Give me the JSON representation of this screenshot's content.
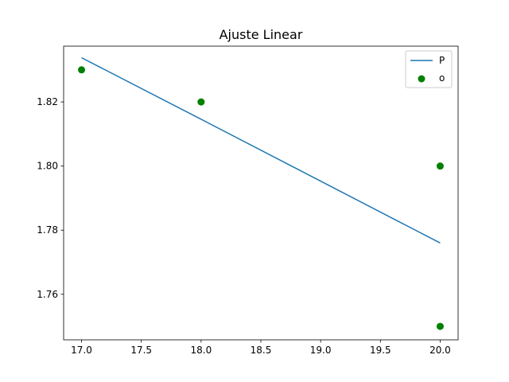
{
  "chart_data": {
    "type": "line",
    "title": "Ajuste Linear",
    "xlabel": "",
    "ylabel": "",
    "xlim": [
      16.85,
      20.15
    ],
    "ylim": [
      1.7458,
      1.8374
    ],
    "xticks": [
      17.0,
      17.5,
      18.0,
      18.5,
      19.0,
      19.5,
      20.0
    ],
    "xtick_labels": [
      "17.0",
      "17.5",
      "18.0",
      "18.5",
      "19.0",
      "19.5",
      "20.0"
    ],
    "yticks": [
      1.76,
      1.78,
      1.8,
      1.82
    ],
    "ytick_labels": [
      "1.76",
      "1.78",
      "1.80",
      "1.82"
    ],
    "grid": false,
    "legend_position": "top-right",
    "series": [
      {
        "name": "P",
        "kind": "line",
        "color": "#1f77b4",
        "x": [
          17,
          18,
          20,
          20
        ],
        "y": [
          1.8338,
          1.8146,
          1.776,
          1.776
        ]
      },
      {
        "name": "o",
        "kind": "scatter",
        "color": "#008000",
        "x": [
          17,
          18,
          20,
          20
        ],
        "y": [
          1.83,
          1.82,
          1.8,
          1.75
        ]
      }
    ]
  }
}
